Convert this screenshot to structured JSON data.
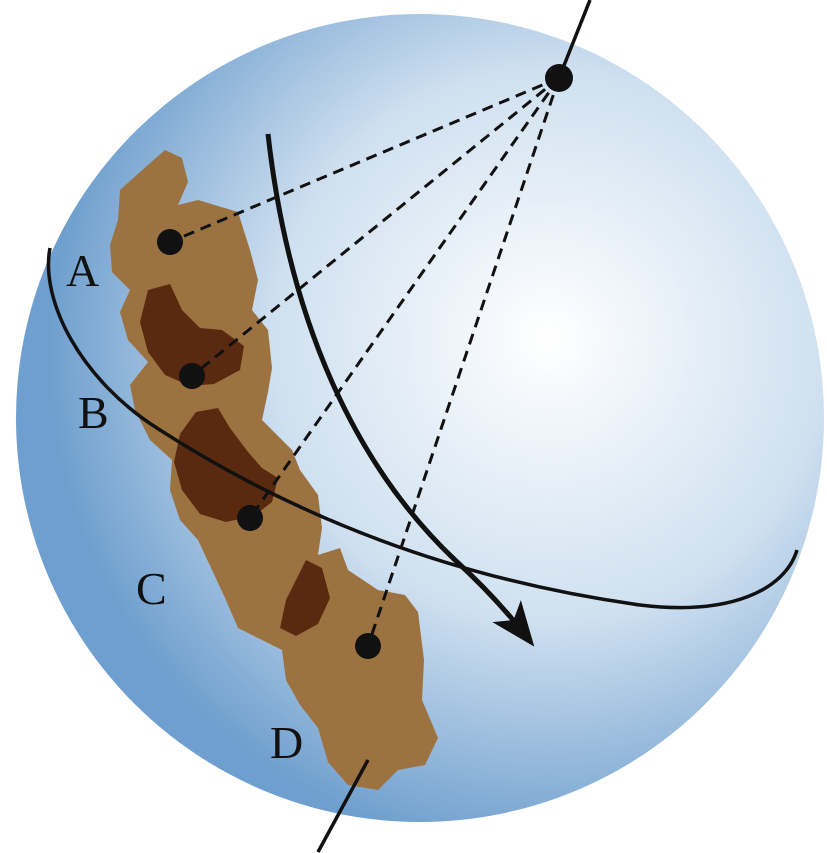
{
  "diagram": {
    "labels": {
      "a": "A",
      "b": "B",
      "c": "C",
      "d": "D"
    },
    "colors": {
      "sphere_center": "#ffffff",
      "sphere_mid": "#cfe0f0",
      "sphere_edge": "#6f9fce",
      "continent": "#9c7340",
      "continent_dark": "#5a2a10",
      "lines": "#111111"
    }
  }
}
